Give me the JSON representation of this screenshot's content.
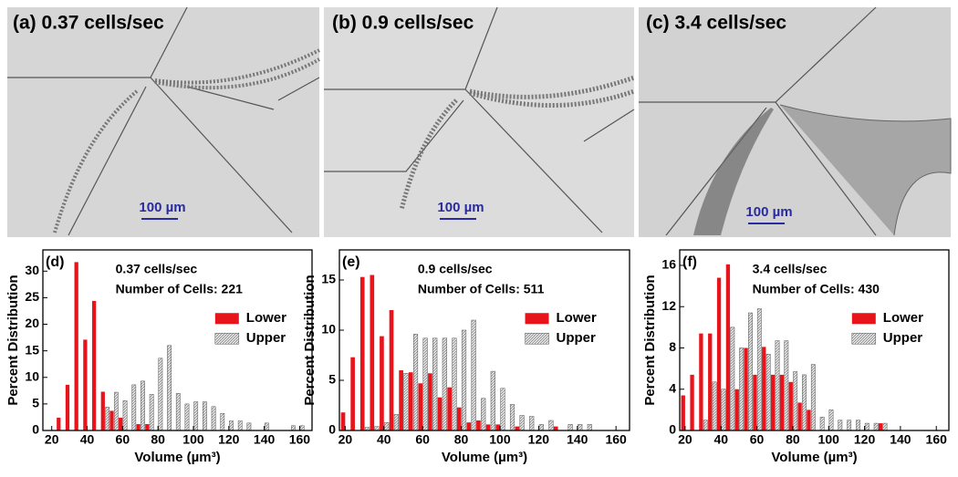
{
  "panels": [
    {
      "label": "(a) 0.37 cells/sec",
      "scale_bar": "100 µm"
    },
    {
      "label": "(b) 0.9 cells/sec",
      "scale_bar": "100 µm"
    },
    {
      "label": "(c) 3.4 cells/sec",
      "scale_bar": "100 µm"
    }
  ],
  "chart_data": [
    {
      "type": "bar",
      "panel_label": "(d)",
      "annotations": [
        "0.37 cells/sec",
        "Number of Cells: 221"
      ],
      "x_label": "Volume (µm³)",
      "y_label": "Percent Distribution",
      "x": [
        20,
        25,
        30,
        35,
        40,
        45,
        50,
        55,
        60,
        65,
        70,
        75,
        80,
        85,
        90,
        95,
        100,
        105,
        110,
        115,
        120,
        125,
        130,
        135,
        140,
        145,
        150,
        155,
        160
      ],
      "series": [
        {
          "name": "Lower",
          "color": "#e8141c",
          "values": [
            0,
            2.4,
            8.6,
            31.7,
            17.1,
            24.4,
            7.3,
            3.7,
            2.4,
            0,
            1.2,
            1.2,
            0,
            0,
            0,
            0,
            0,
            0,
            0,
            0,
            0,
            0,
            0,
            0,
            0,
            0,
            0,
            0,
            0
          ]
        },
        {
          "name": "Upper",
          "color": "#d4d4d4",
          "pattern": "hatch",
          "values": [
            0,
            0,
            0,
            0,
            0,
            0,
            4.4,
            7.2,
            5.6,
            8.6,
            9.3,
            6.8,
            13.6,
            16.0,
            7.0,
            5.0,
            5.4,
            5.4,
            4.5,
            3.2,
            1.8,
            1.8,
            1.4,
            0,
            1.4,
            0,
            0,
            0.9,
            0.9
          ]
        }
      ],
      "xlim": [
        15,
        167
      ],
      "xticks": [
        20,
        40,
        60,
        80,
        100,
        120,
        140,
        160
      ],
      "ylim": [
        0,
        34
      ],
      "yticks": [
        0,
        5,
        10,
        15,
        20,
        25,
        30
      ],
      "legend": "center right"
    },
    {
      "type": "bar",
      "panel_label": "(e)",
      "annotations": [
        "0.9 cells/sec",
        "Number of Cells: 511"
      ],
      "x_label": "Volume (µm³)",
      "y_label": "Percent Distribution",
      "x": [
        20,
        25,
        30,
        35,
        40,
        45,
        50,
        55,
        60,
        65,
        70,
        75,
        80,
        85,
        90,
        95,
        100,
        105,
        110,
        115,
        120,
        125,
        130,
        135,
        140,
        145,
        150,
        155,
        160
      ],
      "series": [
        {
          "name": "Lower",
          "color": "#e8141c",
          "values": [
            1.8,
            7.3,
            15.3,
            15.5,
            9.4,
            12.0,
            6.0,
            5.8,
            4.7,
            5.7,
            3.3,
            4.3,
            2.3,
            0.8,
            1.0,
            0.6,
            0.6,
            0,
            0.4,
            0,
            0,
            0,
            0.4,
            0,
            0,
            0,
            0,
            0,
            0
          ]
        },
        {
          "name": "Upper",
          "color": "#d4d4d4",
          "pattern": "hatch",
          "values": [
            0,
            0,
            0.3,
            0.4,
            0.8,
            1.6,
            5.7,
            9.6,
            9.2,
            9.2,
            9.2,
            9.2,
            10.0,
            11.0,
            3.2,
            5.9,
            4.2,
            2.6,
            1.5,
            1.4,
            0.6,
            1.0,
            0,
            0.6,
            0.6,
            0.6,
            0,
            0,
            0
          ]
        }
      ],
      "xlim": [
        17,
        167
      ],
      "xticks": [
        20,
        40,
        60,
        80,
        100,
        120,
        140,
        160
      ],
      "ylim": [
        0,
        18
      ],
      "yticks": [
        0,
        5,
        10,
        15
      ],
      "legend": "center right"
    },
    {
      "type": "bar",
      "panel_label": "(f)",
      "annotations": [
        "3.4 cells/sec",
        "Number of Cells: 430"
      ],
      "x_label": "Volume (µm³)",
      "y_label": "Percent Distribution",
      "x": [
        20,
        25,
        30,
        35,
        40,
        45,
        50,
        55,
        60,
        65,
        70,
        75,
        80,
        85,
        90,
        95,
        100,
        105,
        110,
        115,
        120,
        125,
        130,
        135,
        140,
        145,
        150,
        155,
        160
      ],
      "series": [
        {
          "name": "Lower",
          "color": "#e8141c",
          "values": [
            3.4,
            5.4,
            9.4,
            9.4,
            14.8,
            16.1,
            4.0,
            8.0,
            5.4,
            8.1,
            5.4,
            5.4,
            4.7,
            2.7,
            2.0,
            0,
            0,
            0,
            0,
            0,
            0,
            0,
            0.7,
            0,
            0,
            0,
            0,
            0,
            0
          ]
        },
        {
          "name": "Upper",
          "color": "#d4d4d4",
          "pattern": "hatch",
          "values": [
            0,
            0,
            1.0,
            4.7,
            4.0,
            10.0,
            8.0,
            11.4,
            11.8,
            7.4,
            8.7,
            8.7,
            5.7,
            5.4,
            6.4,
            1.3,
            2.0,
            1.0,
            1.0,
            1.0,
            0.7,
            0.7,
            0.7,
            0,
            0,
            0,
            0,
            0,
            0
          ]
        }
      ],
      "xlim": [
        17,
        167
      ],
      "xticks": [
        20,
        40,
        60,
        80,
        100,
        120,
        140,
        160
      ],
      "ylim": [
        0,
        17.5
      ],
      "yticks": [
        0,
        4,
        8,
        12,
        16
      ],
      "legend": "center right"
    }
  ]
}
